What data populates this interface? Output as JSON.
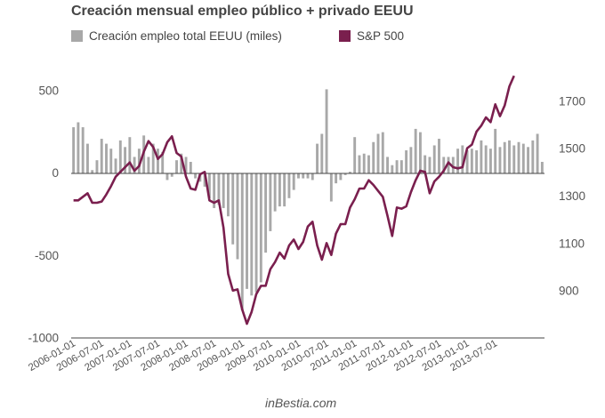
{
  "colors": {
    "bar": "#a8a8a8",
    "line": "#7a1f4e",
    "axis": "#555555",
    "grid": "#e6e6e6"
  },
  "credit": "inBestia.com",
  "chart_data": {
    "type": "bar",
    "title": "Creación mensual empleo público + privado EEUU",
    "legend": [
      {
        "label": "Creación empleo total EEUU (miles)",
        "kind": "bar"
      },
      {
        "label": "S&P 500",
        "kind": "line"
      }
    ],
    "legend_position": "top",
    "grid": false,
    "y_left": {
      "ylim": [
        -1000,
        650
      ],
      "ticks": [
        500,
        0,
        -500,
        -1000
      ],
      "tick_labels": [
        "500",
        "0",
        "-500",
        "-1000"
      ]
    },
    "y_right": {
      "ylim": [
        640,
        1850
      ],
      "ticks": [
        1700,
        1500,
        1300,
        1100,
        900
      ],
      "tick_labels": [
        "1700",
        "1500",
        "1300",
        "1100",
        "900"
      ]
    },
    "x_tick_labels": [
      "2006-01-01",
      "2006-07-01",
      "2007-01-01",
      "2007-07-01",
      "2008-01-01",
      "2008-07-01",
      "2009-01-01",
      "2009-07-01",
      "2010-01-01",
      "2010-07-01",
      "2011-01-01",
      "2011-07-01",
      "2012-01-01",
      "2012-07-01",
      "2013-01-01",
      "2013-07-01"
    ],
    "series": [
      {
        "name": "Creación empleo total EEUU (miles)",
        "type": "bar",
        "axis": "left",
        "x_start": "2006-01",
        "values": [
          280,
          310,
          280,
          180,
          20,
          80,
          210,
          180,
          150,
          90,
          200,
          160,
          220,
          100,
          150,
          230,
          100,
          180,
          150,
          130,
          -40,
          -20,
          80,
          120,
          100,
          70,
          -30,
          -50,
          -80,
          -150,
          -210,
          -190,
          -210,
          -260,
          -430,
          -520,
          -830,
          -700,
          -740,
          -720,
          -660,
          -480,
          -350,
          -230,
          -200,
          -200,
          -150,
          -100,
          -30,
          -30,
          -30,
          -40,
          180,
          240,
          510,
          -170,
          -60,
          -40,
          -10,
          10,
          220,
          110,
          120,
          110,
          190,
          240,
          250,
          100,
          50,
          80,
          80,
          140,
          160,
          270,
          250,
          110,
          100,
          170,
          210,
          100,
          100,
          100,
          150,
          170,
          140,
          150,
          140,
          200,
          170,
          150,
          270,
          160,
          190,
          200,
          170,
          190,
          180,
          160,
          200,
          240,
          70
        ]
      },
      {
        "name": "S&P 500",
        "type": "line",
        "axis": "right",
        "x_start": "2006-01",
        "values": [
          1280,
          1280,
          1295,
          1310,
          1270,
          1270,
          1275,
          1305,
          1340,
          1380,
          1400,
          1420,
          1440,
          1405,
          1425,
          1485,
          1530,
          1505,
          1455,
          1475,
          1525,
          1550,
          1480,
          1465,
          1380,
          1330,
          1325,
          1390,
          1400,
          1280,
          1270,
          1280,
          1165,
          970,
          900,
          905,
          820,
          760,
          810,
          885,
          920,
          920,
          990,
          1020,
          1060,
          1035,
          1090,
          1115,
          1075,
          1105,
          1170,
          1190,
          1090,
          1030,
          1100,
          1050,
          1140,
          1180,
          1180,
          1250,
          1285,
          1330,
          1330,
          1365,
          1345,
          1320,
          1295,
          1215,
          1130,
          1250,
          1245,
          1255,
          1315,
          1365,
          1405,
          1400,
          1310,
          1360,
          1380,
          1405,
          1440,
          1420,
          1415,
          1420,
          1500,
          1515,
          1570,
          1595,
          1630,
          1610,
          1685,
          1635,
          1680,
          1760,
          1805
        ]
      }
    ]
  }
}
